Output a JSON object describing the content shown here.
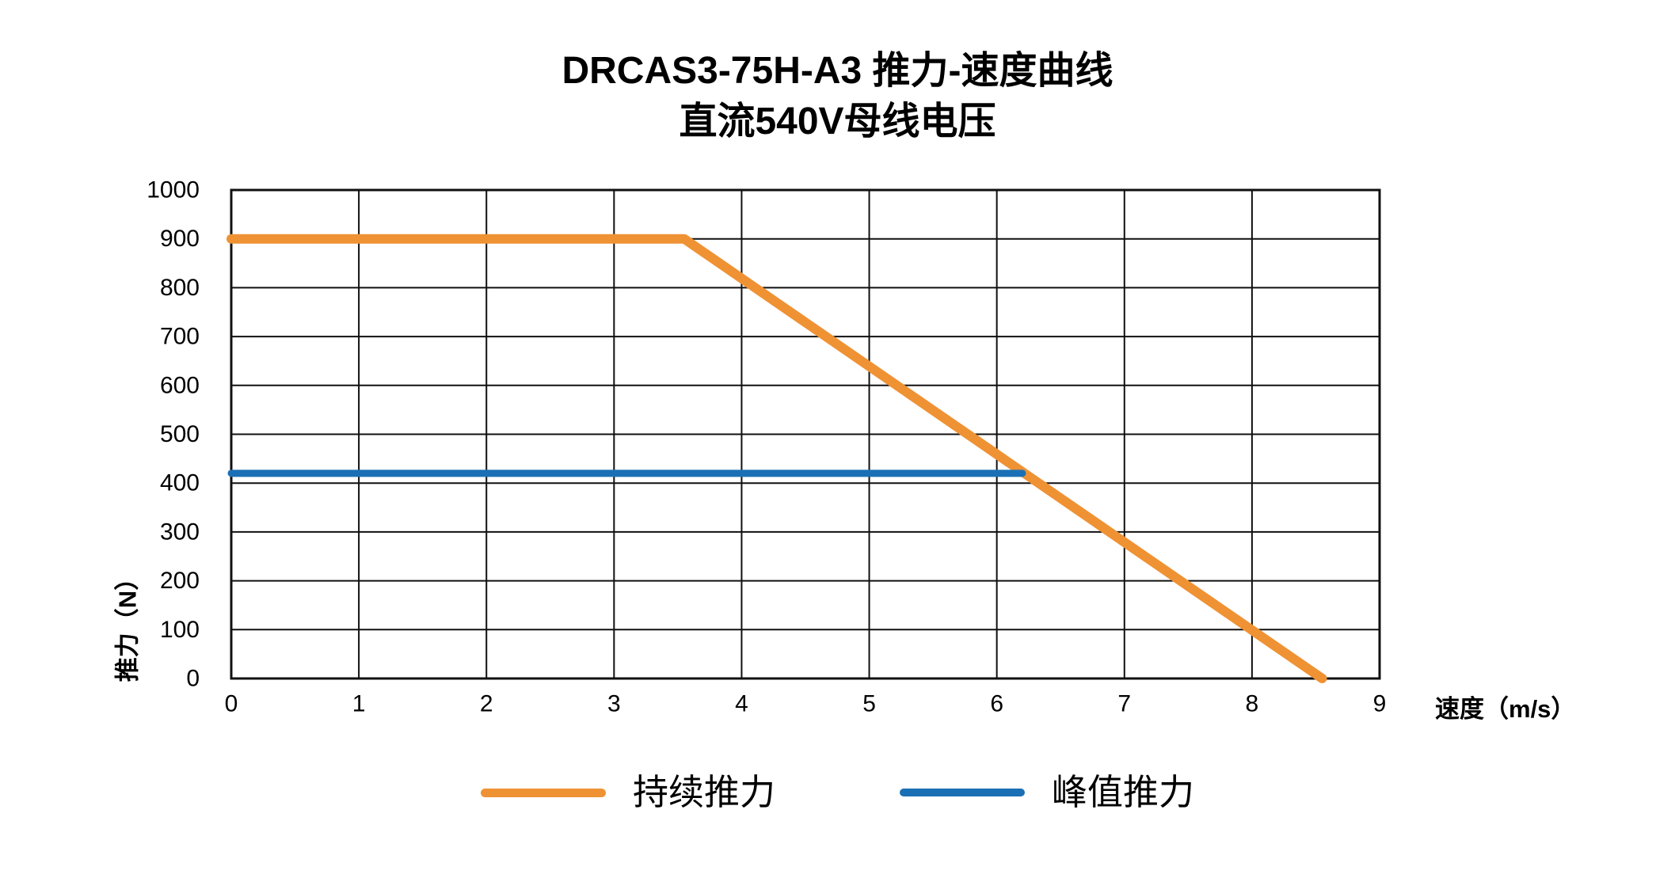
{
  "title": {
    "line1": "DRCAS3-75H-A3 推力-速度曲线",
    "line2": "直流540V母线电压"
  },
  "chart_data": {
    "type": "line",
    "title": "DRCAS3-75H-A3 推力-速度曲线",
    "subtitle": "直流540V母线电压",
    "xlabel": "速度（m/s）",
    "ylabel": "推力（N）",
    "xlim": [
      0,
      9
    ],
    "ylim": [
      0,
      1000
    ],
    "xticks": [
      0,
      1,
      2,
      3,
      4,
      5,
      6,
      7,
      8,
      9
    ],
    "yticks": [
      0,
      100,
      200,
      300,
      400,
      500,
      600,
      700,
      800,
      900,
      1000
    ],
    "grid": true,
    "legend_position": "bottom",
    "series": [
      {
        "name": "持续推力",
        "color": "#EF9234",
        "stroke_width": 12,
        "points": [
          [
            0,
            900
          ],
          [
            3.55,
            900
          ],
          [
            8.55,
            0
          ]
        ]
      },
      {
        "name": "峰值推力",
        "color": "#1B70B5",
        "stroke_width": 9,
        "points": [
          [
            0,
            420
          ],
          [
            6.2,
            420
          ]
        ]
      }
    ]
  },
  "colors": {
    "grid": "#101010",
    "text": "#000000",
    "background": "#ffffff"
  }
}
